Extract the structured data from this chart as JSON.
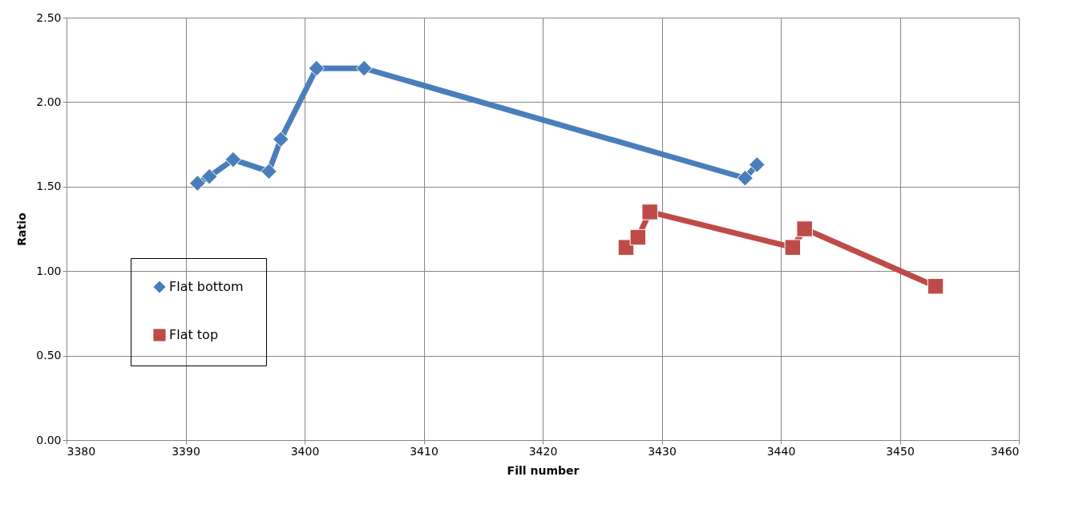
{
  "chart_data": {
    "type": "line",
    "xlabel": "Fill number",
    "ylabel": "Ratio",
    "xlim": [
      3380,
      3460
    ],
    "xticks": [
      3380,
      3390,
      3400,
      3410,
      3420,
      3430,
      3440,
      3450,
      3460
    ],
    "ylim": [
      0,
      2.5
    ],
    "yticks": [
      {
        "value": 0,
        "label": "0.00"
      },
      {
        "value": 0.5,
        "label": "0.50"
      },
      {
        "value": 1,
        "label": "1.00"
      },
      {
        "value": 1.5,
        "label": "1.50"
      },
      {
        "value": 2,
        "label": "2.00"
      },
      {
        "value": 2.5,
        "label": "2.50"
      }
    ],
    "grid": true,
    "legend": "left",
    "line_style": "solid",
    "series": [
      {
        "name": "Flat bottom",
        "color": "#4a7ebb",
        "marker": "diamond",
        "x": [
          3391,
          3392,
          3394,
          3397,
          3398,
          3401,
          3405,
          3437,
          3438
        ],
        "values": [
          1.52,
          1.56,
          1.66,
          1.59,
          1.78,
          2.2,
          2.2,
          1.55,
          1.63
        ]
      },
      {
        "name": "Flat top",
        "color": "#be4b48",
        "marker": "square",
        "x": [
          3427,
          3428,
          3429,
          3441,
          3442,
          3453
        ],
        "values": [
          1.14,
          1.2,
          1.35,
          1.14,
          1.25,
          0.91
        ]
      }
    ]
  }
}
